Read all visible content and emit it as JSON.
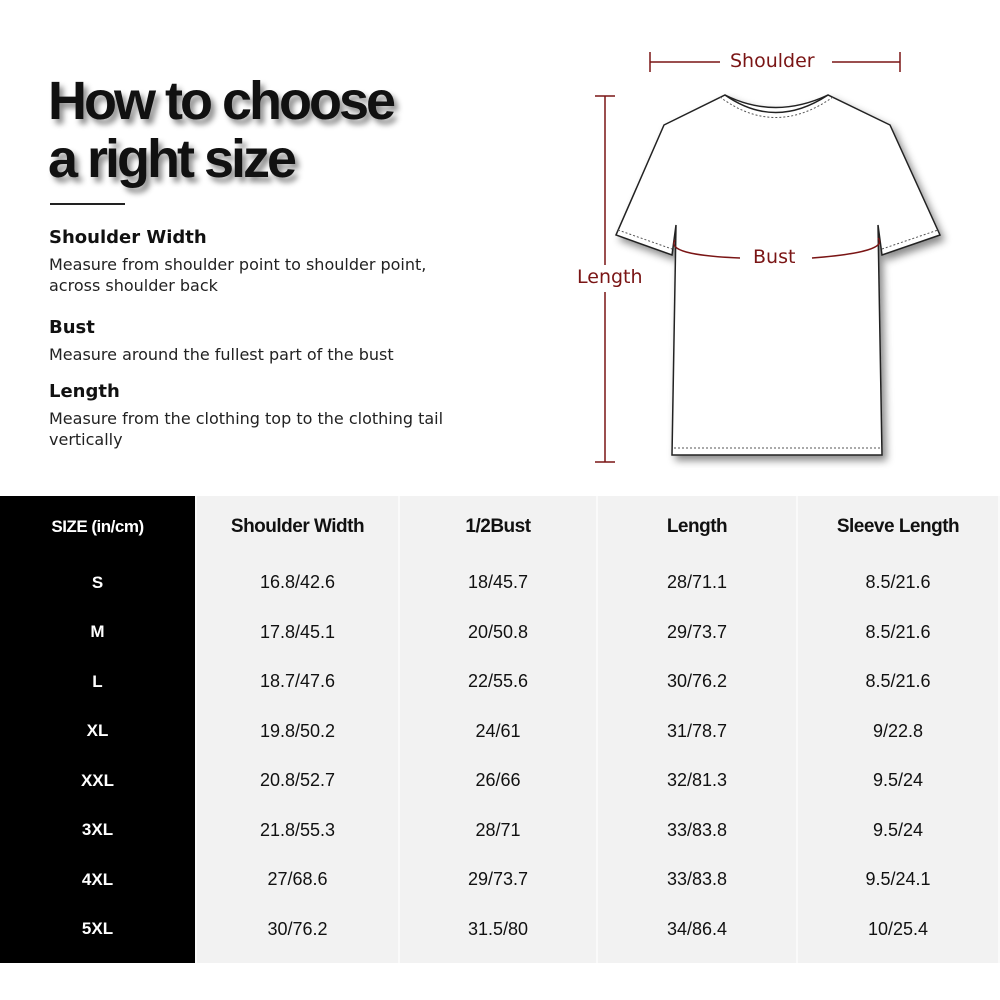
{
  "title": {
    "line1": "How to choose",
    "line2": "a right size"
  },
  "guide": [
    {
      "heading": "Shoulder Width",
      "line1": "Measure from shoulder point to shoulder point,",
      "line2": "across shoulder back"
    },
    {
      "heading": "Bust",
      "line1": "Measure around the fullest part of the bust",
      "line2": ""
    },
    {
      "heading": "Length",
      "line1": "Measure from the clothing top to the clothing tail",
      "line2": "vertically"
    }
  ],
  "diagram": {
    "shoulder": "Shoulder",
    "bust": "Bust",
    "length": "Length",
    "accent": "#7a1515"
  },
  "table": {
    "headers": [
      "SIZE  (in/cm)",
      "Shoulder Width",
      "1/2Bust",
      "Length",
      "Sleeve Length"
    ],
    "sizes": [
      "S",
      "M",
      "L",
      "XL",
      "XXL",
      "3XL",
      "4XL",
      "5XL"
    ],
    "shoulder": [
      "16.8/42.6",
      "17.8/45.1",
      "18.7/47.6",
      "19.8/50.2",
      "20.8/52.7",
      "21.8/55.3",
      "27/68.6",
      "30/76.2"
    ],
    "bust": [
      "18/45.7",
      "20/50.8",
      "22/55.6",
      "24/61",
      "26/66",
      "28/71",
      "29/73.7",
      "31.5/80"
    ],
    "length": [
      "28/71.1",
      "29/73.7",
      "30/76.2",
      "31/78.7",
      "32/81.3",
      "33/83.8",
      "33/83.8",
      "34/86.4"
    ],
    "sleeve": [
      "8.5/21.6",
      "8.5/21.6",
      "8.5/21.6",
      "9/22.8",
      "9.5/24",
      "9.5/24",
      "9.5/24.1",
      "10/25.4"
    ]
  }
}
